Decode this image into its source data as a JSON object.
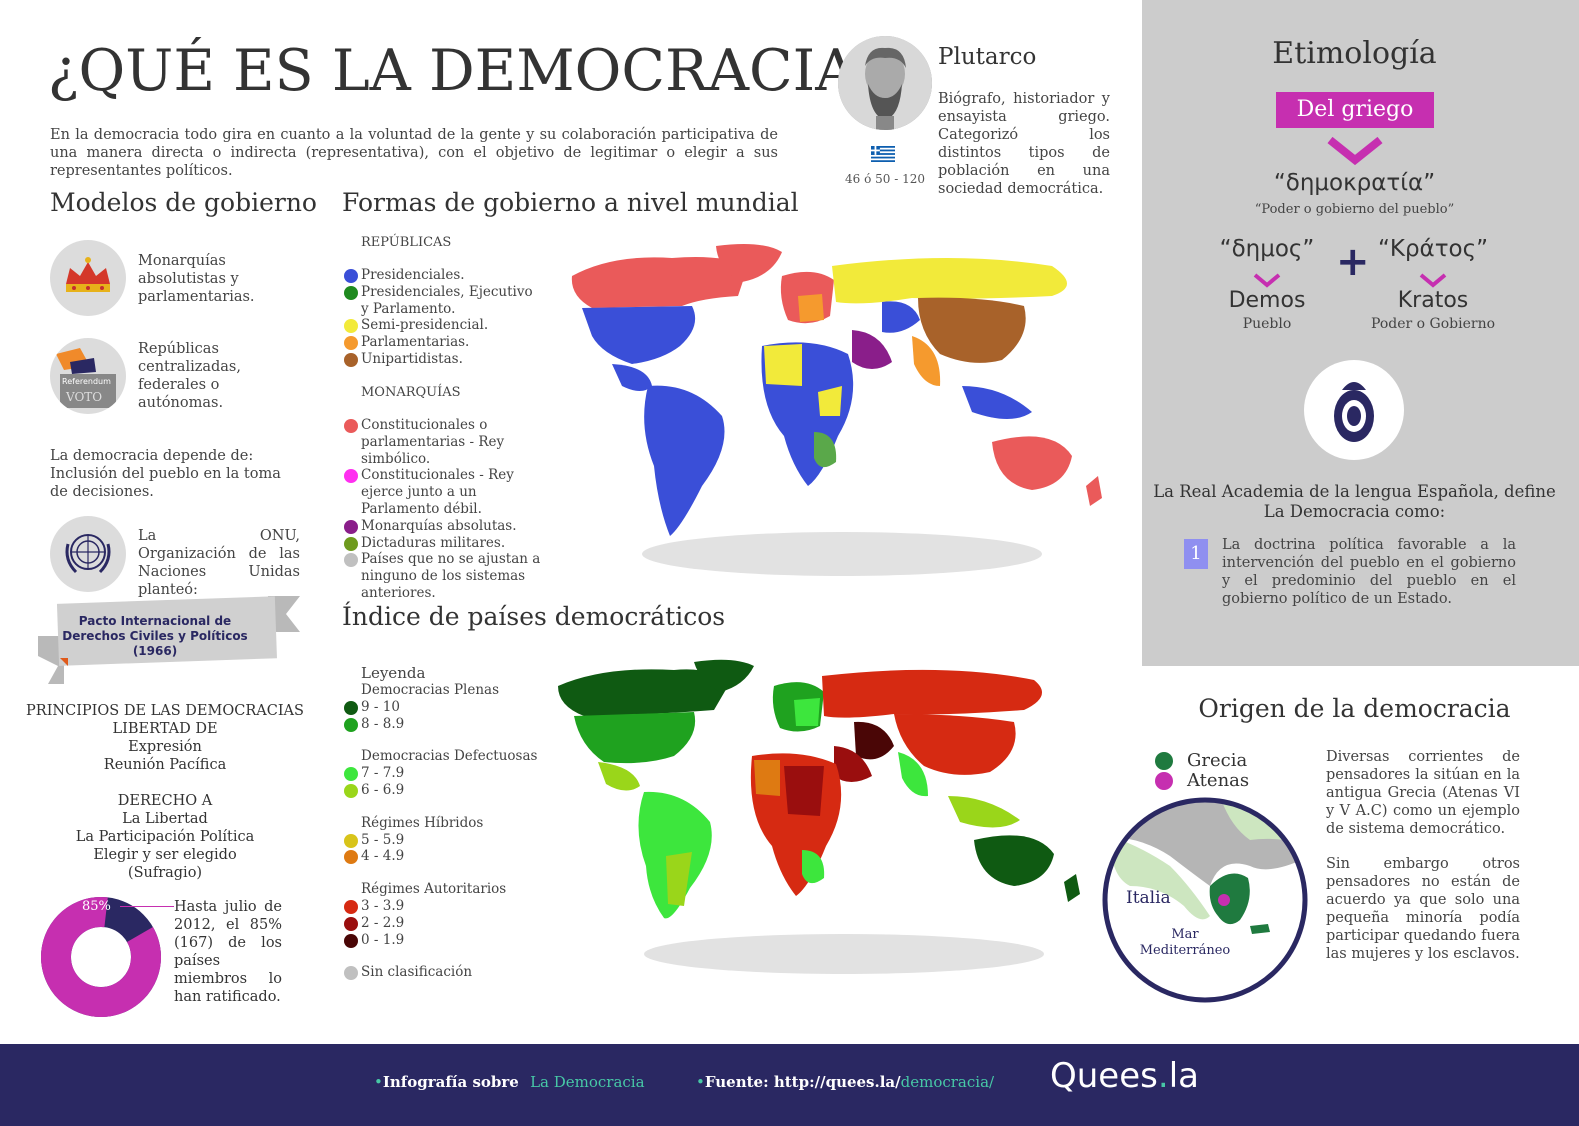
{
  "title": "¿QUÉ ES LA DEMOCRACIA?",
  "intro": "En la democracia todo gira en cuanto a la voluntad de la gente y su colaboración participativa de una manera directa o indirecta (representativa), con el objetivo de legitimar o elegir a sus representantes políticos.",
  "plutarco": {
    "name": "Plutarco",
    "description": "Biógrafo, historiador y ensayista griego. Categorizó los distintos tipos de población en una sociedad democrática.",
    "dates": "46 ó 50 - 120"
  },
  "modelos": {
    "heading": "Modelos de gobierno",
    "item1": "Monarquías absolutistas y parlamentarias.",
    "item2": "Repúblicas centralizadas, federales o autónomas.",
    "referendum_label": "Referendum",
    "voto_label": "VOTO",
    "depende": "La democracia depende de: Inclusión del pueblo en la toma de decisiones.",
    "onu": "La ONU, Organización de las Naciones Unidas planteó:",
    "banner": "Pacto Internacional de Derechos Civiles y Políticos (1966)"
  },
  "principios": {
    "line1": "PRINCIPIOS DE LAS DEMOCRACIAS",
    "line2": "LIBERTAD DE",
    "line3": "Expresión",
    "line4": "Reunión Pacífica",
    "line5": "DERECHO A",
    "line6": "La Libertad",
    "line7": "La Participación Política",
    "line8": "Elegir y ser elegido",
    "line9": "(Sufragio)"
  },
  "pie": {
    "label": "85%",
    "value": 85,
    "text": "Hasta julio de 2012, el 85% (167) de los países miembros lo han ratificado.",
    "color_main": "#c62fb0",
    "color_rest": "#2a2862"
  },
  "formas": {
    "heading": "Formas de gobierno a nivel mundial",
    "republicas": "REPÚBLICAS",
    "r1": "Presidenciales.",
    "r2": "Presidenciales,  Ejecutivo y Parlamento.",
    "r3": "Semi-presidencial.",
    "r4": "Parlamentarias.",
    "r5": "Unipartidistas.",
    "monarquias": "MONARQUÍAS",
    "m1": "Constitucionales o parlamentarias - Rey simbólico.",
    "m2": "Constitucionales - Rey ejerce junto a un Parlamento débil.",
    "m3": "Monarquías absolutas.",
    "m4": "Dictaduras militares.",
    "m5": "Países que no se ajustan a ninguno de los sistemas anteriores."
  },
  "indice": {
    "heading": "Índice de países democráticos",
    "leyenda": "Leyenda",
    "plenas": "Democracias Plenas",
    "p1": "9 - 10",
    "p2": "8 - 8.9",
    "defectuosas": "Democracias Defectuosas",
    "d1": "7 - 7.9",
    "d2": "6 - 6.9",
    "hibridos": "Régimes Híbridos",
    "h1": "5 - 5.9",
    "h2": "4 - 4.9",
    "autoritarios": "Régimes Autoritarios",
    "a1": "3 - 3.9",
    "a2": "2 - 2.9",
    "a3": "0 - 1.9",
    "sin": "Sin clasificación"
  },
  "etimologia": {
    "title": "Etimología",
    "tag": "Del griego",
    "greek_word": "“δημοκρατία”",
    "greek_meaning": "“Poder o gobierno del pueblo”",
    "part1_greek": "“δημος”",
    "part2_greek": "“Κράτος”",
    "plus": "+",
    "part1_word": "Demos",
    "part1_meaning": "Pueblo",
    "part2_word": "Kratos",
    "part2_meaning": "Poder o Gobierno",
    "rae": "La Real Academia de la lengua Española, define La Democracia como:",
    "def_num": "1",
    "definition": "La doctrina política favorable a la intervención del pueblo en el gobierno y el predominio del pueblo en el gobierno político de un Estado."
  },
  "origen": {
    "title": "Origen de la democracia",
    "legend1": "Grecia",
    "legend2": "Atenas",
    "map_label_italia": "Italia",
    "map_label_mar1": "Mar",
    "map_label_mar2": "Mediterráneo",
    "p1": "Diversas corrientes de pensadores la sitúan en la antigua Grecia (Atenas VI y V A.C) como un ejemplo de sistema democrático.",
    "p2": "Sin embargo otros pensadores no están de acuerdo ya que solo una pequeña minoría podía participar quedando fuera las mujeres y los esclavos."
  },
  "footer": {
    "info_label": "Infografía sobre",
    "info_value": "La Democracia",
    "source_label": "Fuente: http://quees.la/",
    "source_value": "democracia/",
    "brand_main": "Quees",
    "brand_dot": ".",
    "brand_end": "la"
  }
}
